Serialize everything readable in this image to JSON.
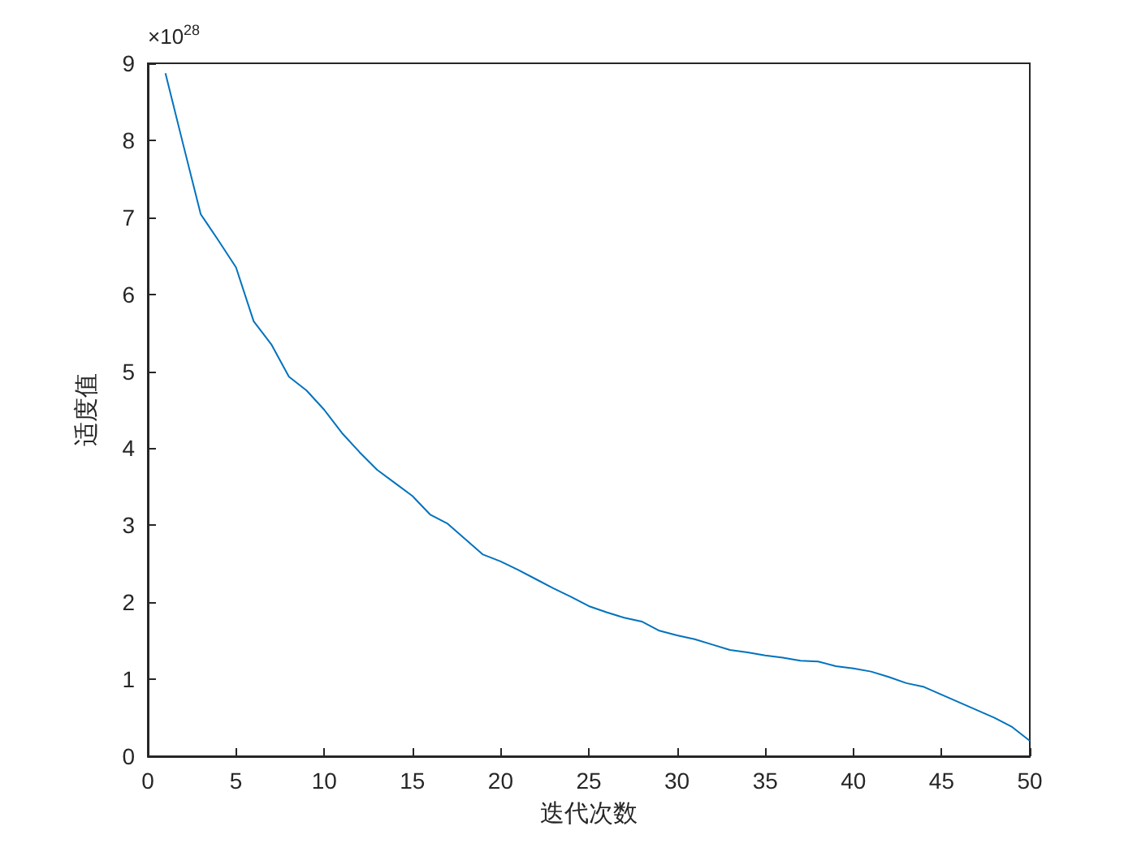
{
  "chart_data": {
    "type": "line",
    "xlabel": "迭代次数",
    "ylabel": "适度值",
    "annotations": [
      "×10$^{28}$"
    ],
    "x": [
      1,
      2,
      3,
      4,
      5,
      6,
      7,
      8,
      9,
      10,
      11,
      12,
      13,
      14,
      15,
      16,
      17,
      18,
      19,
      20,
      21,
      22,
      23,
      24,
      25,
      26,
      27,
      28,
      29,
      30,
      31,
      32,
      33,
      34,
      35,
      36,
      37,
      38,
      39,
      40,
      41,
      42,
      43,
      44,
      45,
      46,
      47,
      48,
      49,
      50
    ],
    "series": [
      {
        "color": "#0072bd",
        "values": [
          8.87,
          7.95,
          7.04,
          6.7,
          6.35,
          5.65,
          5.35,
          4.93,
          4.75,
          4.5,
          4.2,
          3.95,
          3.72,
          3.55,
          3.38,
          3.14,
          3.02,
          2.82,
          2.62,
          2.53,
          2.42,
          2.3,
          2.18,
          2.07,
          1.95,
          1.87,
          1.8,
          1.75,
          1.63,
          1.57,
          1.52,
          1.45,
          1.38,
          1.35,
          1.31,
          1.28,
          1.24,
          1.23,
          1.17,
          1.14,
          1.1,
          1.03,
          0.95,
          0.9,
          0.8,
          0.7,
          0.6,
          0.5,
          0.38,
          0.2
        ]
      }
    ],
    "xlim": [
      0,
      50
    ],
    "xticks": [
      0,
      5,
      10,
      15,
      20,
      25,
      30,
      35,
      40,
      45,
      50
    ],
    "ylim": [
      0,
      9
    ],
    "yticks": [
      0,
      1,
      2,
      3,
      4,
      5,
      6,
      7,
      8,
      9
    ],
    "marker": "none",
    "line_style": "solid"
  }
}
